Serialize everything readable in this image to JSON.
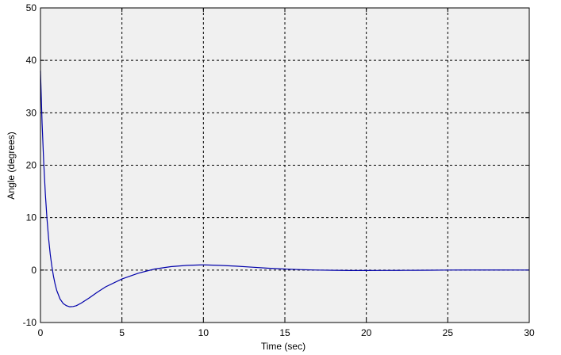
{
  "chart_data": {
    "type": "line",
    "xlabel": "Time (sec)",
    "ylabel": "Angle (degrees)",
    "xlim": [
      0,
      30
    ],
    "ylim": [
      -10,
      50
    ],
    "xticks": [
      0,
      5,
      10,
      15,
      20,
      25,
      30
    ],
    "yticks": [
      -10,
      0,
      10,
      20,
      30,
      40,
      50
    ],
    "grid": true,
    "grid_style": "dashed",
    "legend": "none",
    "colors": {
      "background": "#f0f0f0",
      "line": "#0000aa",
      "grid": "#000000"
    },
    "series": [
      {
        "x": [
          0,
          0.1,
          0.2,
          0.3,
          0.4,
          0.5,
          0.6,
          0.7,
          0.8,
          0.9,
          1.0,
          1.2,
          1.4,
          1.6,
          1.8,
          2.0,
          2.2,
          2.5,
          3.0,
          3.5,
          4.0,
          5.0,
          6.0,
          7.0,
          8.0,
          9.0,
          10.0,
          11.0,
          12.0,
          13.0,
          14.0,
          15.0,
          16.0,
          17.0,
          18.0,
          19.0,
          20.0,
          21.0,
          22.0,
          23.0,
          24.0,
          25.0,
          26.0,
          28.0,
          30.0
        ],
        "y": [
          38.0,
          28.0,
          20.5,
          14.5,
          9.8,
          6.0,
          3.0,
          0.7,
          -1.2,
          -2.7,
          -3.9,
          -5.5,
          -6.4,
          -6.8,
          -7.0,
          -6.95,
          -6.8,
          -6.3,
          -5.3,
          -4.2,
          -3.2,
          -1.7,
          -0.6,
          0.2,
          0.65,
          0.9,
          1.0,
          0.9,
          0.75,
          0.55,
          0.35,
          0.2,
          0.08,
          0.0,
          -0.05,
          -0.08,
          -0.08,
          -0.07,
          -0.06,
          -0.04,
          -0.02,
          0.0,
          0.01,
          0.01,
          0.0
        ]
      }
    ]
  }
}
